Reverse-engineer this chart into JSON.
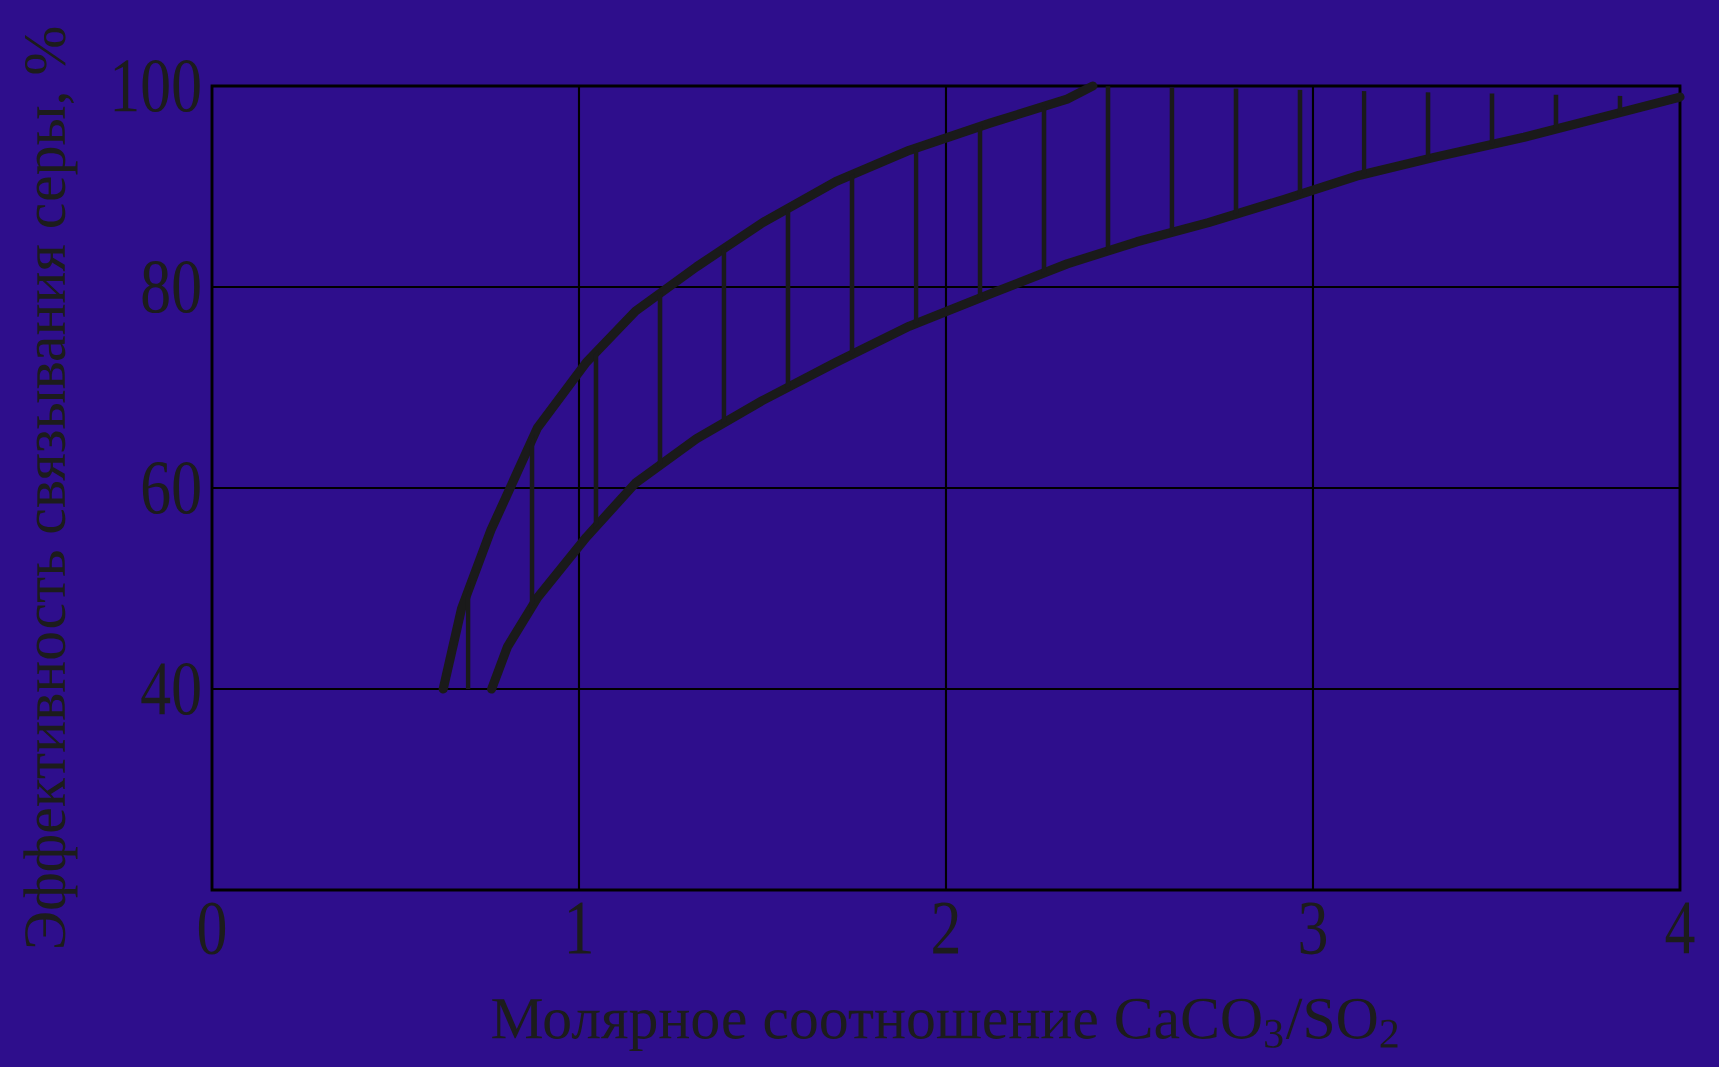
{
  "chart_data": {
    "type": "line",
    "xlabel": "Молярное соотношение CaCO$_{3}$/SO$_{2}$",
    "ylabel": "Эффективность связывания серы, %",
    "xlim": [
      0,
      4
    ],
    "ylim": [
      20,
      100
    ],
    "xticks": [
      0,
      1,
      2,
      3,
      4
    ],
    "yticks": [
      40,
      60,
      80,
      100
    ],
    "grid": true,
    "series": [
      {
        "color": "#1a1a1a",
        "x": [
          0.63,
          0.68,
          0.76,
          0.887,
          1.02,
          1.154,
          1.32,
          1.5,
          1.7,
          1.9,
          2.12,
          2.33,
          2.4
        ],
        "values": [
          40,
          48,
          55.8,
          66,
          72.5,
          77.6,
          82,
          86.4,
          90.5,
          93.6,
          96.3,
          98.7,
          100
        ]
      },
      {
        "color": "#1a1a1a",
        "x": [
          0.762,
          0.805,
          0.887,
          1.02,
          1.154,
          1.32,
          1.5,
          1.7,
          1.9,
          2.12,
          2.33,
          2.52,
          2.715,
          2.92,
          3.125,
          3.33,
          3.575,
          3.81,
          4.0
        ],
        "values": [
          40,
          44.2,
          49.1,
          55.1,
          60.5,
          64.9,
          68.7,
          72.5,
          76.1,
          79.3,
          82.3,
          84.5,
          86.4,
          88.7,
          91.1,
          92.9,
          94.9,
          97.1,
          98.9
        ]
      }
    ]
  }
}
